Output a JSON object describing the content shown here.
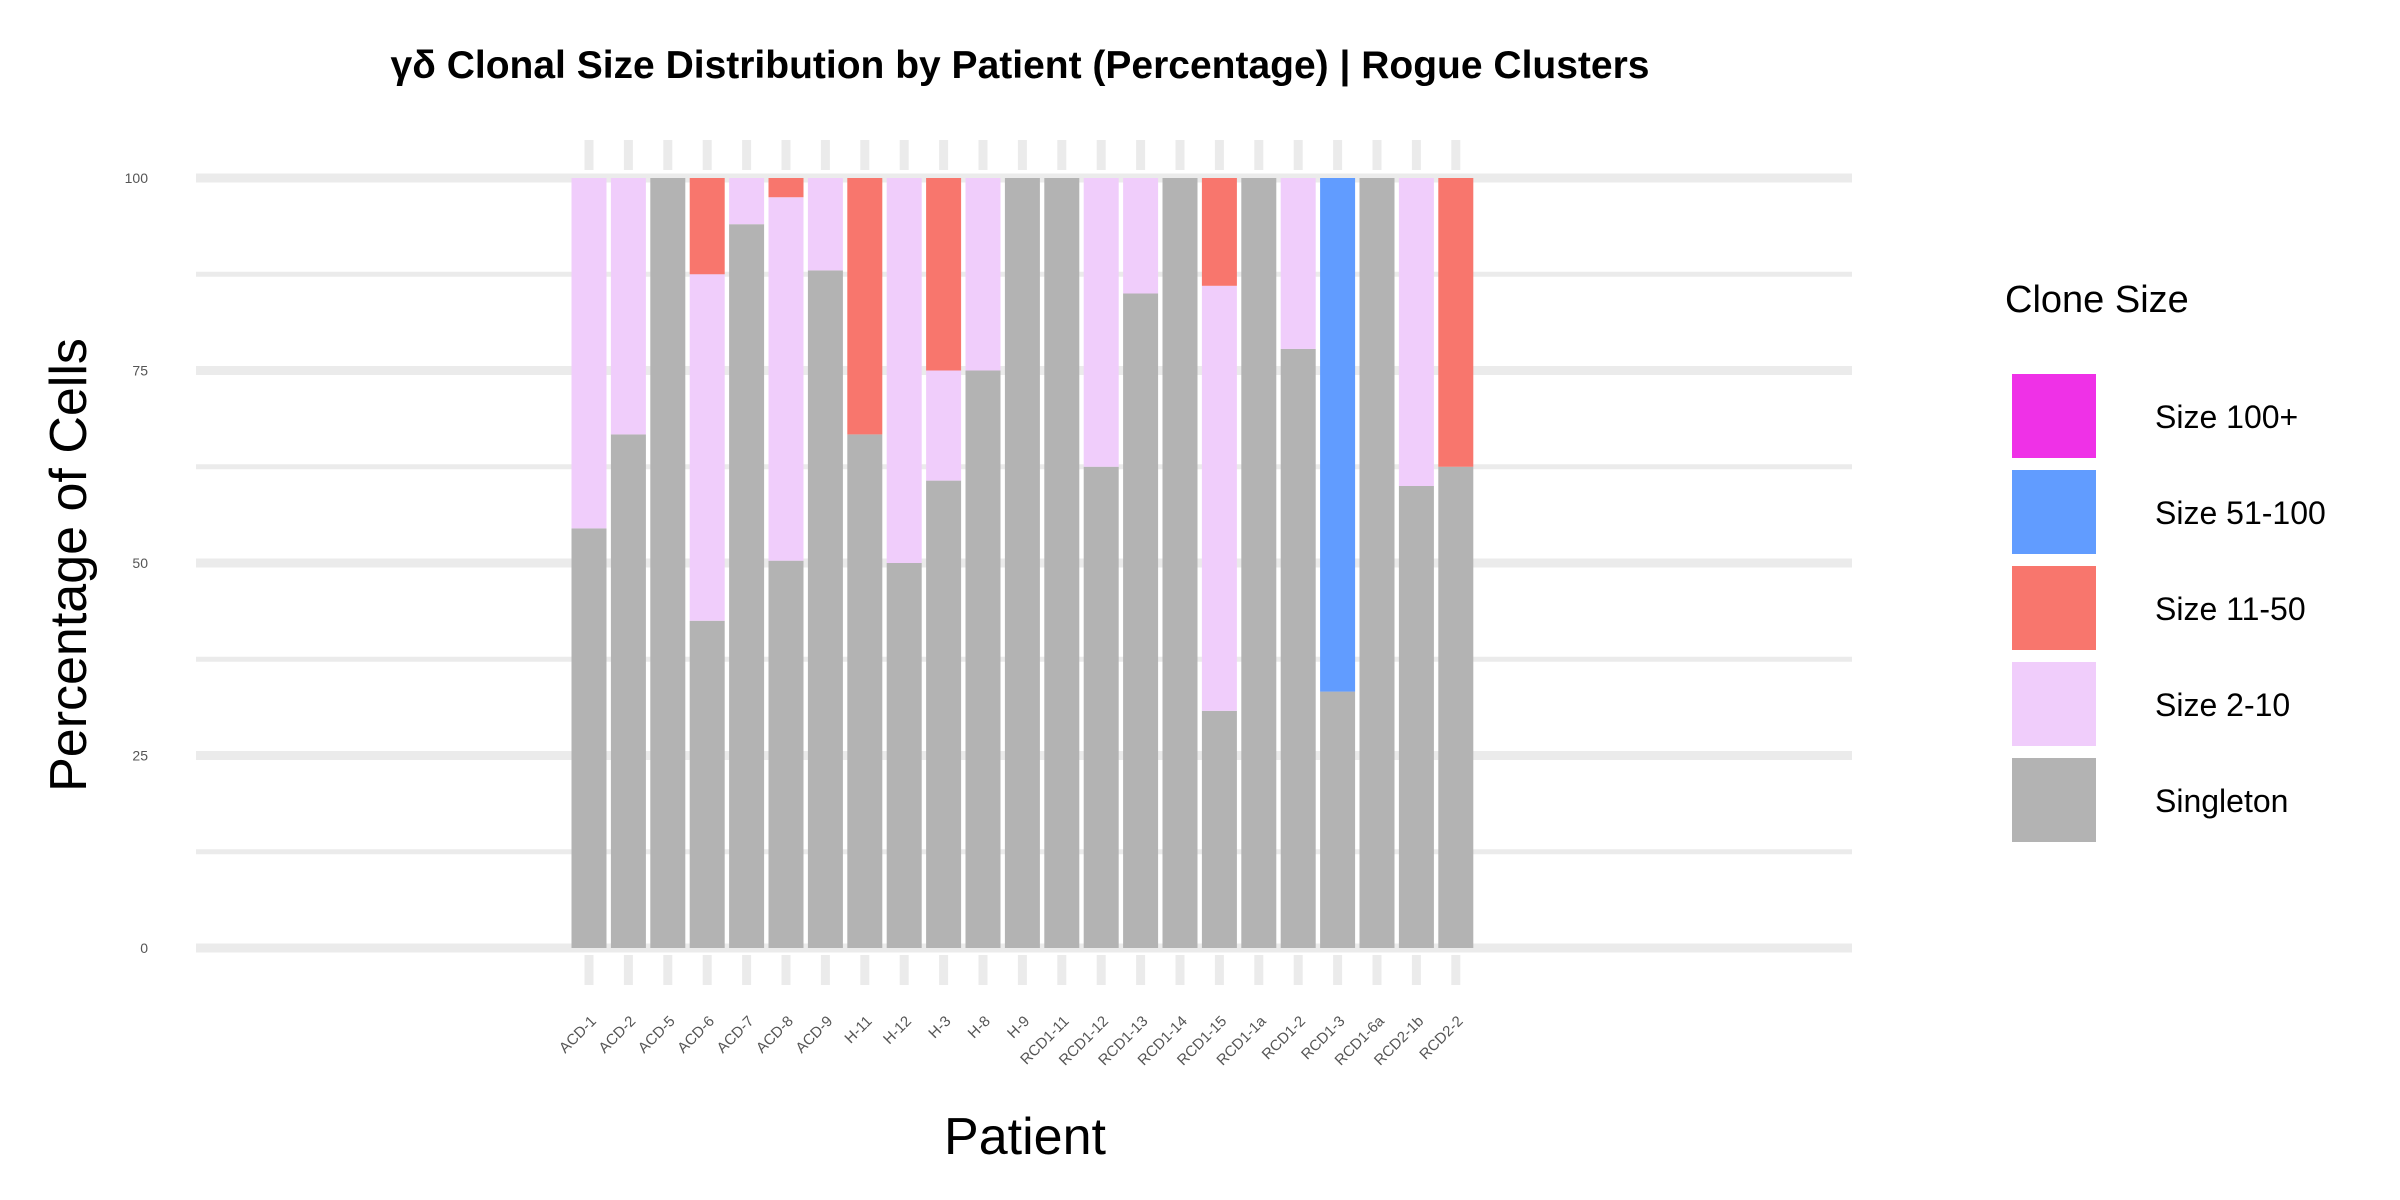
{
  "chart_data": {
    "type": "bar",
    "stacked": true,
    "title": "γδ Clonal Size Distribution by Patient (Percentage) | Rogue Clusters",
    "xlabel": "Patient",
    "ylabel": "Percentage of Cells",
    "ylim": [
      0,
      100
    ],
    "yticks": [
      "0",
      "25",
      "50",
      "75",
      "100"
    ],
    "grid": true,
    "legend_position": "right",
    "legend_title": "Clone Size",
    "categories": [
      "ACD-1",
      "ACD-2",
      "ACD-5",
      "ACD-6",
      "ACD-7",
      "ACD-8",
      "ACD-9",
      "H-11",
      "H-12",
      "H-3",
      "H-8",
      "H-9",
      "RCD1-11",
      "RCD1-12",
      "RCD1-13",
      "RCD1-14",
      "RCD1-15",
      "RCD1-1a",
      "RCD1-2",
      "RCD1-3",
      "RCD1-6a",
      "RCD2-1b",
      "RCD2-2"
    ],
    "series": [
      {
        "name": "Singleton",
        "color": "#b3b3b3",
        "values": [
          54.5,
          66.7,
          100,
          42.5,
          94,
          50.3,
          88,
          66.7,
          50,
          60.7,
          75,
          100,
          100,
          62.5,
          85,
          100,
          30.8,
          100,
          77.8,
          33.3,
          100,
          60,
          62.5
        ]
      },
      {
        "name": "Size 2-10",
        "color": "#f0cdfb",
        "values": [
          45.5,
          33.3,
          0,
          45,
          6,
          47.2,
          12,
          0,
          50,
          14.3,
          25,
          0,
          0,
          37.5,
          15,
          0,
          55.2,
          0,
          22.2,
          0,
          0,
          40,
          0
        ]
      },
      {
        "name": "Size 11-50",
        "color": "#f8766d",
        "values": [
          0,
          0,
          0,
          12.5,
          0,
          2.5,
          0,
          33.3,
          0,
          25,
          0,
          0,
          0,
          0,
          0,
          0,
          14,
          0,
          0,
          0,
          0,
          0,
          37.5
        ]
      },
      {
        "name": "Size 51-100",
        "color": "#619cff",
        "values": [
          0,
          0,
          0,
          0,
          0,
          0,
          0,
          0,
          0,
          0,
          0,
          0,
          0,
          0,
          0,
          0,
          0,
          0,
          0,
          66.7,
          0,
          0,
          0
        ]
      },
      {
        "name": "Size 100+",
        "color": "#ef31e7",
        "values": [
          0,
          0,
          0,
          0,
          0,
          0,
          0,
          0,
          0,
          0,
          0,
          0,
          0,
          0,
          0,
          0,
          0,
          0,
          0,
          0,
          0,
          0,
          0
        ]
      }
    ],
    "legend_order": [
      "Size 100+",
      "Size 51-100",
      "Size 11-50",
      "Size 2-10",
      "Singleton"
    ]
  }
}
